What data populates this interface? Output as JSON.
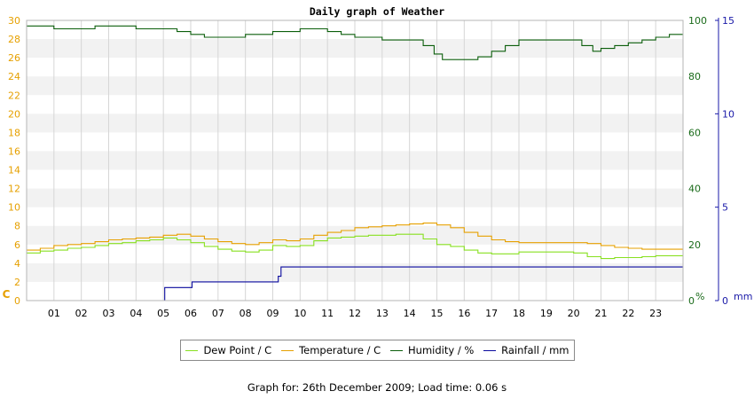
{
  "chart_data": {
    "type": "line",
    "title": "Daily graph of Weather",
    "x_tick_labels": [
      "01",
      "02",
      "03",
      "04",
      "05",
      "06",
      "07",
      "08",
      "09",
      "10",
      "11",
      "12",
      "13",
      "14",
      "15",
      "16",
      "17",
      "18",
      "19",
      "20",
      "21",
      "22",
      "23"
    ],
    "xlim": [
      0,
      24
    ],
    "axes": {
      "left": {
        "unit": "C",
        "ylim": [
          0,
          30
        ],
        "ticks": [
          0,
          2,
          4,
          6,
          8,
          10,
          12,
          14,
          16,
          18,
          20,
          22,
          24,
          26,
          28,
          30
        ],
        "color": "#e6a000"
      },
      "right1": {
        "unit": "%",
        "ylim": [
          0,
          100
        ],
        "ticks": [
          0,
          20,
          40,
          60,
          80,
          100
        ],
        "color": "#1a6b1a"
      },
      "right2": {
        "unit": "mm",
        "ylim": [
          0,
          15
        ],
        "ticks": [
          0,
          5,
          10,
          15
        ],
        "color": "#1a1aa8"
      }
    },
    "grid": true,
    "legend_position": "bottom",
    "series": [
      {
        "name": "Dew Point / C",
        "axis": "left",
        "color": "#88e020",
        "x": [
          0,
          0.5,
          1,
          1.5,
          2,
          2.5,
          3,
          3.5,
          4,
          4.5,
          5,
          5.5,
          6,
          6.5,
          7,
          7.5,
          8,
          8.5,
          9,
          9.5,
          10,
          10.5,
          11,
          11.5,
          12,
          12.5,
          13,
          13.5,
          14,
          14.5,
          15,
          15.5,
          16,
          16.5,
          17,
          17.5,
          18,
          18.5,
          19,
          19.5,
          20,
          20.5,
          21,
          21.5,
          22,
          22.5,
          23,
          23.5,
          24
        ],
        "values": [
          5.1,
          5.3,
          5.4,
          5.6,
          5.7,
          5.9,
          6.1,
          6.2,
          6.4,
          6.5,
          6.7,
          6.5,
          6.2,
          5.8,
          5.5,
          5.3,
          5.2,
          5.4,
          5.9,
          5.8,
          5.9,
          6.4,
          6.7,
          6.8,
          6.9,
          7.0,
          7.0,
          7.1,
          7.1,
          6.6,
          6.0,
          5.8,
          5.4,
          5.1,
          5.0,
          5.0,
          5.2,
          5.2,
          5.2,
          5.2,
          5.1,
          4.7,
          4.5,
          4.6,
          4.6,
          4.7,
          4.8,
          4.8,
          4.8
        ]
      },
      {
        "name": "Temperature / C",
        "axis": "left",
        "color": "#e6a000",
        "x": [
          0,
          0.5,
          1,
          1.5,
          2,
          2.5,
          3,
          3.5,
          4,
          4.5,
          5,
          5.5,
          6,
          6.5,
          7,
          7.5,
          8,
          8.5,
          9,
          9.5,
          10,
          10.5,
          11,
          11.5,
          12,
          12.5,
          13,
          13.5,
          14,
          14.5,
          15,
          15.5,
          16,
          16.5,
          17,
          17.5,
          18,
          18.5,
          19,
          19.5,
          20,
          20.5,
          21,
          21.5,
          22,
          22.5,
          23,
          23.5,
          24
        ],
        "values": [
          5.4,
          5.6,
          5.9,
          6.0,
          6.1,
          6.3,
          6.5,
          6.6,
          6.7,
          6.8,
          7.0,
          7.1,
          6.9,
          6.6,
          6.3,
          6.1,
          6.0,
          6.2,
          6.5,
          6.4,
          6.6,
          7.0,
          7.3,
          7.5,
          7.8,
          7.9,
          8.0,
          8.1,
          8.2,
          8.3,
          8.1,
          7.8,
          7.3,
          6.9,
          6.5,
          6.3,
          6.2,
          6.2,
          6.2,
          6.2,
          6.2,
          6.1,
          5.9,
          5.7,
          5.6,
          5.5,
          5.5,
          5.5,
          5.5
        ]
      },
      {
        "name": "Humidity / %",
        "axis": "right1",
        "color": "#0b5e0b",
        "x": [
          0,
          0.7,
          1,
          2,
          2.5,
          3,
          4,
          5,
          5.5,
          6,
          6.5,
          7,
          7.5,
          8,
          9,
          10,
          10.7,
          11,
          11.5,
          12,
          13,
          14,
          14.5,
          14.9,
          15.2,
          15.5,
          16,
          16.5,
          17,
          17.5,
          18,
          19,
          20,
          20.3,
          20.7,
          21,
          21.5,
          22,
          22.5,
          23,
          23.5,
          24
        ],
        "values": [
          98,
          98,
          97,
          97,
          98,
          98,
          97,
          97,
          96,
          95,
          94,
          94,
          94,
          95,
          96,
          97,
          97,
          96,
          95,
          94,
          93,
          93,
          91,
          88,
          86,
          86,
          86,
          87,
          89,
          91,
          93,
          93,
          93,
          91,
          89,
          90,
          91,
          92,
          93,
          94,
          95,
          95
        ]
      },
      {
        "name": "Rainfall / mm",
        "axis": "right2",
        "color": "#0a0a9e",
        "x": [
          0,
          4.95,
          5.05,
          6,
          6.05,
          9.1,
          9.2,
          9.3,
          24
        ],
        "values": [
          0,
          0,
          0.7,
          0.7,
          1.0,
          1.0,
          1.3,
          1.8,
          1.8
        ]
      }
    ]
  },
  "footer": {
    "date_label": "Graph for: 26th December 2009; Load time: 0.06 s"
  }
}
